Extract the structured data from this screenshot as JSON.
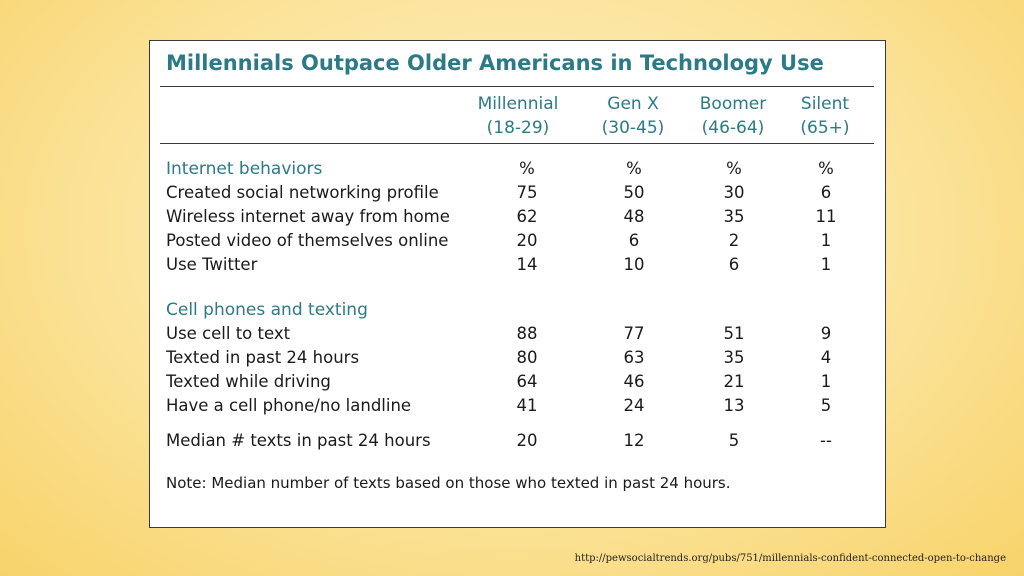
{
  "title": "Millennials Outpace Older Americans in Technology Use",
  "columns": [
    {
      "name": "Millennial",
      "range": "(18-29)"
    },
    {
      "name": "Gen X",
      "range": "(30-45)"
    },
    {
      "name": "Boomer",
      "range": "(46-64)"
    },
    {
      "name": "Silent",
      "range": "(65+)"
    }
  ],
  "sections": [
    {
      "heading": "Internet behaviors",
      "unit_row": [
        "%",
        "%",
        "%",
        "%"
      ],
      "rows": [
        {
          "label": "Created social networking profile",
          "values": [
            "75",
            "50",
            "30",
            "6"
          ]
        },
        {
          "label": "Wireless internet away from home",
          "values": [
            "62",
            "48",
            "35",
            "11"
          ]
        },
        {
          "label": "Posted video of themselves online",
          "values": [
            "20",
            "6",
            "2",
            "1"
          ]
        },
        {
          "label": "Use Twitter",
          "values": [
            "14",
            "10",
            "6",
            "1"
          ]
        }
      ]
    },
    {
      "heading": "Cell phones and texting",
      "rows": [
        {
          "label": "Use cell to text",
          "values": [
            "88",
            "77",
            "51",
            "9"
          ]
        },
        {
          "label": "Texted in past 24 hours",
          "values": [
            "80",
            "63",
            "35",
            "4"
          ]
        },
        {
          "label": "Texted while driving",
          "values": [
            "64",
            "46",
            "21",
            "1"
          ]
        },
        {
          "label": "Have a cell phone/no landline",
          "values": [
            "41",
            "24",
            "13",
            "5"
          ]
        }
      ]
    }
  ],
  "median_row": {
    "label": "Median # texts in past 24 hours",
    "values": [
      "20",
      "12",
      "5",
      "--"
    ]
  },
  "note": "Note: Median number of texts based on those who texted in past 24 hours.",
  "source_url": "http://pewsocialtrends.org/pubs/751/millennials-confident-connected-open-to-change",
  "colors": {
    "accent": "#2c7a86",
    "background": "#fbe39a",
    "card": "#ffffff"
  }
}
